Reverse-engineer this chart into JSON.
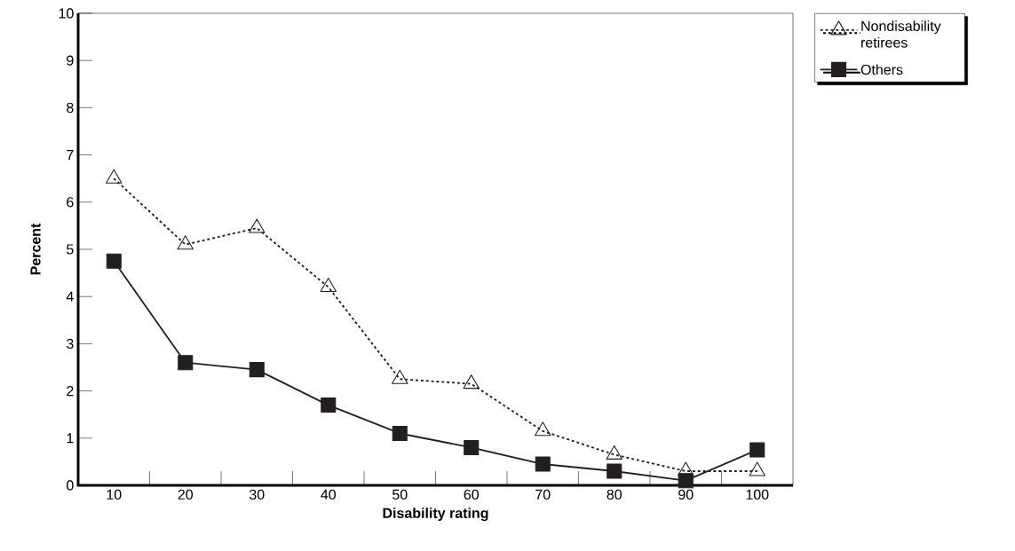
{
  "chart_data": {
    "type": "line",
    "xlabel": "Disability rating",
    "ylabel": "Percent",
    "categories": [
      "10",
      "20",
      "30",
      "40",
      "50",
      "60",
      "70",
      "80",
      "90",
      "100"
    ],
    "series": [
      {
        "name": "Nondisability retirees",
        "color": "#231f20",
        "marker": "triangle",
        "line_style": "dotted",
        "values": [
          6.5,
          5.1,
          5.45,
          4.2,
          2.25,
          2.15,
          1.15,
          0.65,
          0.3,
          0.3
        ]
      },
      {
        "name": "Others",
        "color": "#231f20",
        "marker": "square",
        "line_style": "solid",
        "values": [
          4.75,
          2.6,
          2.45,
          1.7,
          1.1,
          0.8,
          0.45,
          0.3,
          0.1,
          0.75
        ]
      }
    ],
    "ylim": [
      0,
      10
    ],
    "yticks": [
      0,
      1,
      2,
      3,
      4,
      5,
      6,
      7,
      8,
      9,
      10
    ],
    "grid": false,
    "legend": "top right"
  }
}
